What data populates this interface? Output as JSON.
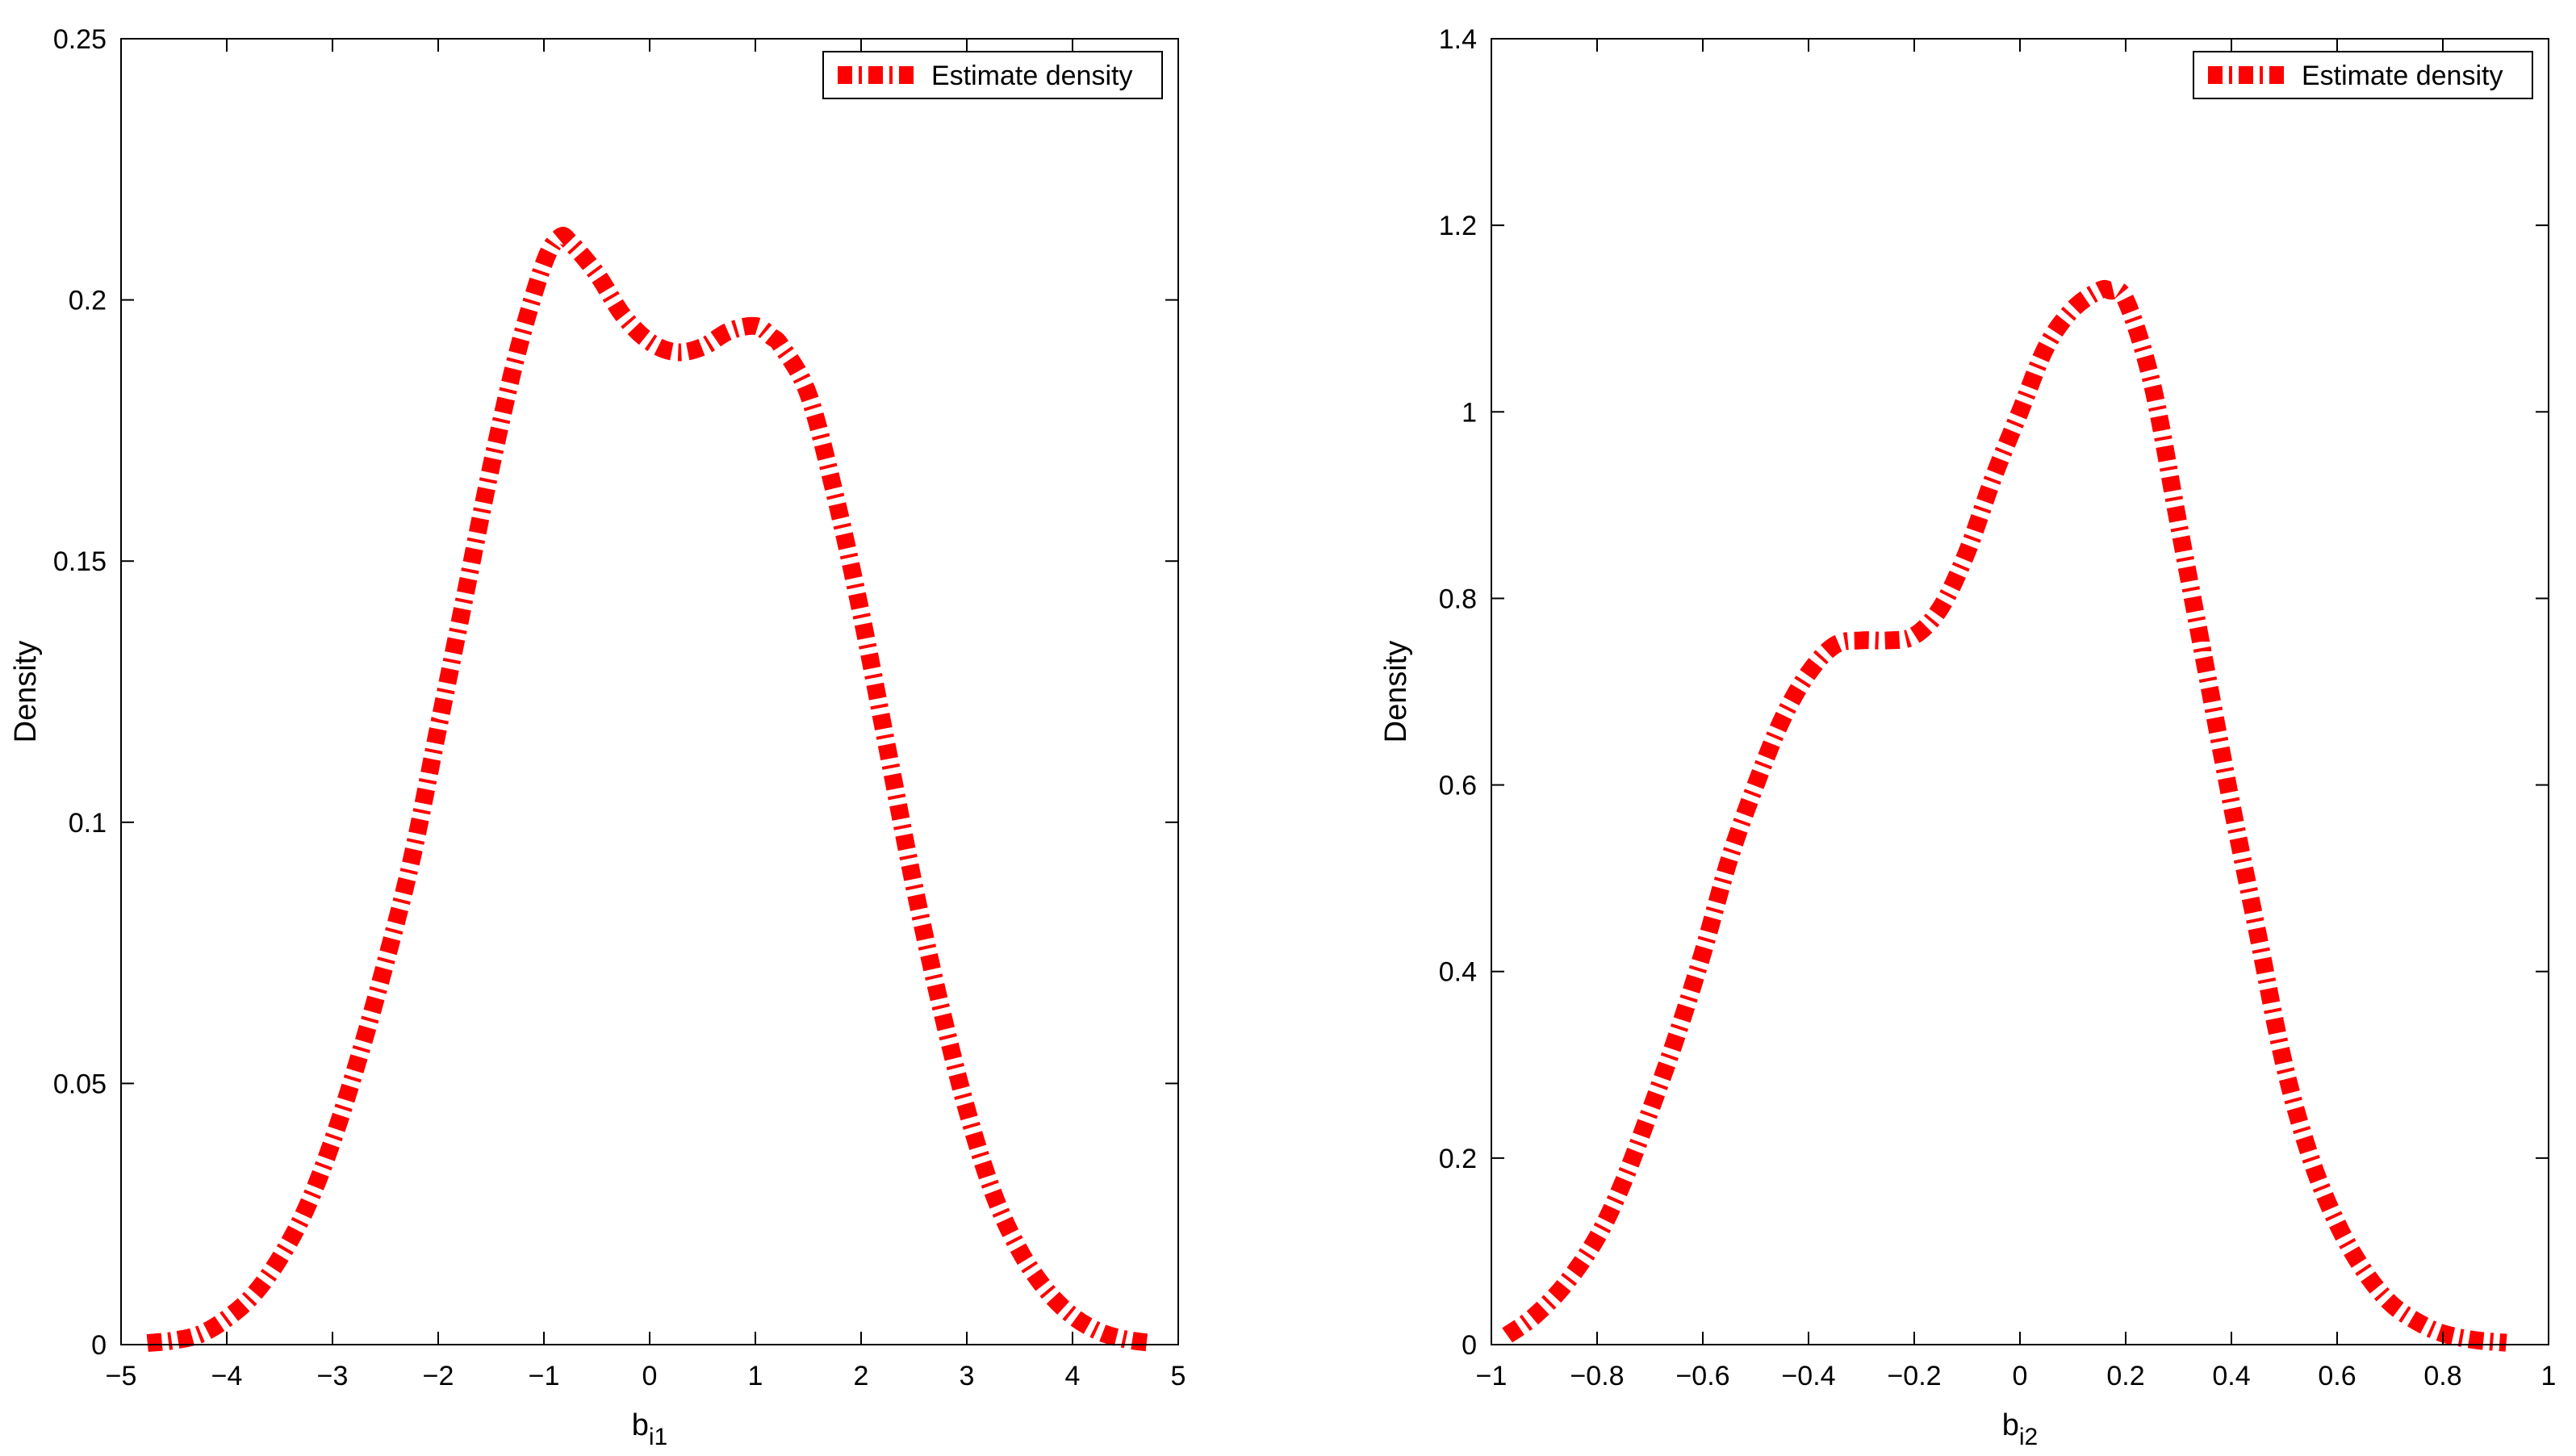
{
  "colors": {
    "line": "#ff0000",
    "axes": "#000000",
    "background": "#ffffff"
  },
  "chart_data": [
    {
      "type": "line",
      "title": "",
      "xlabel": "b",
      "xlabel_sub": "i1",
      "ylabel": "Density",
      "xlim": [
        -5,
        5
      ],
      "ylim": [
        0,
        0.25
      ],
      "xticks": [
        -5,
        -4,
        -3,
        -2,
        -1,
        0,
        1,
        2,
        3,
        4,
        5
      ],
      "xtick_labels": [
        "−5",
        "−4",
        "−3",
        "−2",
        "−1",
        "0",
        "1",
        "2",
        "3",
        "4",
        "5"
      ],
      "yticks": [
        0,
        0.05,
        0.1,
        0.15,
        0.2,
        0.25
      ],
      "ytick_labels": [
        "0",
        "0.05",
        "0.1",
        "0.15",
        "0.2",
        "0.25"
      ],
      "grid": false,
      "legend": {
        "position": "top-right",
        "entries": [
          "Estimate density"
        ]
      },
      "series": [
        {
          "name": "Estimate density",
          "color": "#ff0000",
          "style": "thick dash-dot",
          "x": [
            -4.75,
            -4.5,
            -4.25,
            -4.0,
            -3.75,
            -3.5,
            -3.25,
            -3.0,
            -2.75,
            -2.5,
            -2.25,
            -2.0,
            -1.75,
            -1.5,
            -1.25,
            -1.0,
            -0.85,
            -0.75,
            -0.5,
            -0.25,
            0.0,
            0.25,
            0.5,
            0.75,
            1.0,
            1.15,
            1.25,
            1.5,
            1.75,
            2.0,
            2.25,
            2.5,
            2.75,
            3.0,
            3.25,
            3.5,
            3.75,
            4.0,
            4.25,
            4.5,
            4.75
          ],
          "y": [
            0.0003,
            0.0008,
            0.002,
            0.005,
            0.0095,
            0.0165,
            0.026,
            0.039,
            0.055,
            0.073,
            0.093,
            0.118,
            0.143,
            0.168,
            0.19,
            0.207,
            0.212,
            0.211,
            0.205,
            0.197,
            0.192,
            0.19,
            0.191,
            0.194,
            0.195,
            0.193,
            0.191,
            0.182,
            0.163,
            0.14,
            0.114,
            0.088,
            0.065,
            0.045,
            0.029,
            0.018,
            0.0105,
            0.0055,
            0.0025,
            0.001,
            0.0003
          ]
        }
      ]
    },
    {
      "type": "line",
      "title": "",
      "xlabel": "b",
      "xlabel_sub": "i2",
      "ylabel": "Density",
      "xlim": [
        -1,
        1
      ],
      "ylim": [
        0,
        1.4
      ],
      "xticks": [
        -1,
        -0.8,
        -0.6,
        -0.4,
        -0.2,
        0,
        0.2,
        0.4,
        0.6,
        0.8,
        1
      ],
      "xtick_labels": [
        "−1",
        "−0.8",
        "−0.6",
        "−0.4",
        "−0.2",
        "0",
        "0.2",
        "0.4",
        "0.6",
        "0.8",
        "1"
      ],
      "yticks": [
        0,
        0.2,
        0.4,
        0.6,
        0.8,
        1.0,
        1.2,
        1.4
      ],
      "ytick_labels": [
        "0",
        "0.2",
        "0.4",
        "0.6",
        "0.8",
        "1",
        "1.2",
        "1.4"
      ],
      "grid": false,
      "legend": {
        "position": "top-right",
        "entries": [
          "Estimate density"
        ]
      },
      "series": [
        {
          "name": "Estimate density",
          "color": "#ff0000",
          "style": "thick dash-dot",
          "x": [
            -0.97,
            -0.92,
            -0.86,
            -0.8,
            -0.75,
            -0.7,
            -0.65,
            -0.6,
            -0.55,
            -0.5,
            -0.45,
            -0.4,
            -0.35,
            -0.3,
            -0.25,
            -0.2,
            -0.15,
            -0.1,
            -0.05,
            0.0,
            0.05,
            0.1,
            0.15,
            0.17,
            0.2,
            0.25,
            0.3,
            0.35,
            0.4,
            0.45,
            0.5,
            0.55,
            0.6,
            0.65,
            0.7,
            0.75,
            0.8,
            0.86,
            0.92
          ],
          "y": [
            0.01,
            0.03,
            0.065,
            0.115,
            0.175,
            0.25,
            0.33,
            0.42,
            0.52,
            0.6,
            0.67,
            0.72,
            0.75,
            0.755,
            0.755,
            0.76,
            0.79,
            0.85,
            0.93,
            1.0,
            1.07,
            1.11,
            1.13,
            1.13,
            1.12,
            1.03,
            0.88,
            0.73,
            0.58,
            0.44,
            0.3,
            0.2,
            0.13,
            0.08,
            0.045,
            0.025,
            0.012,
            0.005,
            0.002
          ]
        }
      ]
    }
  ]
}
